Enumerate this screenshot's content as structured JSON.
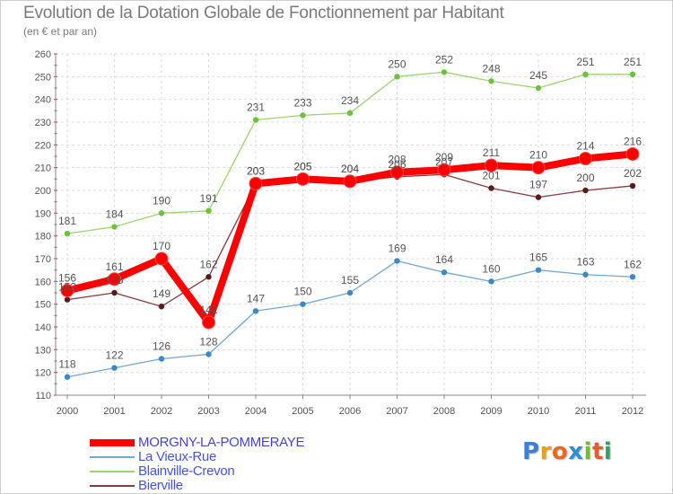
{
  "title": "Evolution de la Dotation Globale de Fonctionnement par Habitant",
  "subtitle": "(en € et par an)",
  "logo": {
    "letters": [
      "P",
      "r",
      "o",
      "x",
      "i",
      "t",
      "i"
    ],
    "colors": [
      "#3a7fd8",
      "#e8a020",
      "#e86a20",
      "#2c8fd0",
      "#7ab830",
      "#e85a30",
      "#3aa060"
    ]
  },
  "chart_data": {
    "type": "line",
    "title": "Evolution de la Dotation Globale de Fonctionnement par Habitant",
    "subtitle": "(en € et par an)",
    "ylim": [
      110,
      260
    ],
    "yticks": [
      "110",
      "120",
      "130",
      "140",
      "150",
      "160",
      "170",
      "180",
      "190",
      "200",
      "210",
      "220",
      "230",
      "240",
      "250",
      "260"
    ],
    "x": [
      "2000",
      "2001",
      "2002",
      "2003",
      "2004",
      "2005",
      "2006",
      "2007",
      "2008",
      "2009",
      "2010",
      "2011",
      "2012"
    ],
    "grid": true,
    "legend_position": "bottom-left",
    "series": [
      {
        "name": "MORGNY-LA-POMMERAYE",
        "color": "#ff0000",
        "marker_color": "#ff0000",
        "thick": true,
        "values": [
          156,
          161,
          170,
          142,
          203,
          205,
          204,
          208,
          209,
          211,
          210,
          214,
          216
        ],
        "labels": [
          "156",
          "161",
          "170",
          "142",
          "203",
          "205",
          "204",
          "208",
          "209",
          "211",
          "210",
          "214",
          "216"
        ]
      },
      {
        "name": "La Vieux-Rue",
        "color": "#6fa8d8",
        "marker_color": "#3a88c8",
        "thick": false,
        "values": [
          118,
          122,
          126,
          128,
          147,
          150,
          155,
          169,
          164,
          160,
          165,
          163,
          162
        ],
        "labels": [
          "118",
          "122",
          "126",
          "128",
          "147",
          "150",
          "155",
          "169",
          "164",
          "160",
          "165",
          "163",
          "162"
        ]
      },
      {
        "name": "Blainville-Crevon",
        "color": "#9ad66a",
        "marker_color": "#6cc23a",
        "thick": false,
        "values": [
          181,
          184,
          190,
          191,
          231,
          233,
          234,
          250,
          252,
          248,
          245,
          251,
          251
        ],
        "labels": [
          "181",
          "184",
          "190",
          "191",
          "231",
          "233",
          "234",
          "250",
          "252",
          "248",
          "245",
          "251",
          "251"
        ]
      },
      {
        "name": "Bierville",
        "color": "#8a3a3a",
        "marker_color": "#5a1a1a",
        "thick": false,
        "values": [
          152,
          155,
          149,
          162,
          203,
          205,
          204,
          206,
          207,
          201,
          197,
          200,
          202
        ],
        "labels": [
          "152",
          "155",
          "149",
          "162",
          "203",
          "205",
          "204",
          "206",
          "207",
          "201",
          "197",
          "200",
          "202"
        ]
      }
    ]
  }
}
